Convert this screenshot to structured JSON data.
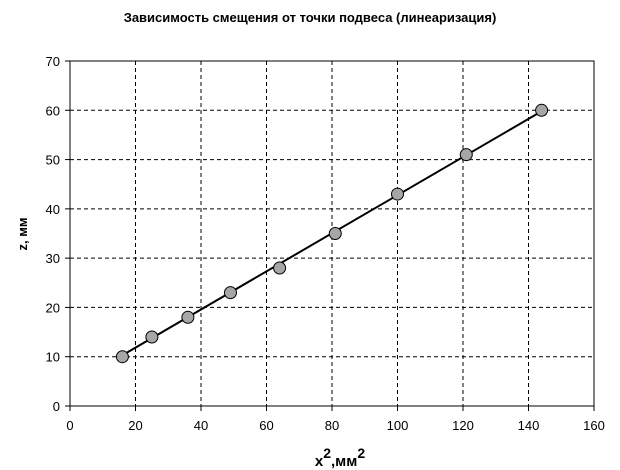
{
  "chart_data": {
    "type": "scatter",
    "title": "Зависимость смещения от точки подвеса (линеаризация)",
    "xlabel": "x",
    "xlabel_unit": ",мм",
    "xlabel_superscript": "2",
    "ylabel": "z, мм",
    "xlim": [
      0,
      160
    ],
    "ylim": [
      0,
      70
    ],
    "x_ticks": [
      "0",
      "20",
      "40",
      "60",
      "80",
      "100",
      "120",
      "140",
      "160"
    ],
    "y_ticks": [
      "0",
      "10",
      "20",
      "30",
      "40",
      "50",
      "60",
      "70"
    ],
    "grid": true,
    "legend": "none",
    "series": [
      {
        "x": [
          16,
          25,
          36,
          49,
          64,
          81,
          100,
          121,
          144
        ],
        "y": [
          10,
          14,
          18,
          23,
          28,
          35,
          43,
          51,
          60
        ],
        "marker_color": "#a6a6a6"
      }
    ],
    "trendline": {
      "x": [
        16,
        144
      ],
      "y": [
        10.3,
        59.8
      ],
      "color": "#000000"
    }
  }
}
